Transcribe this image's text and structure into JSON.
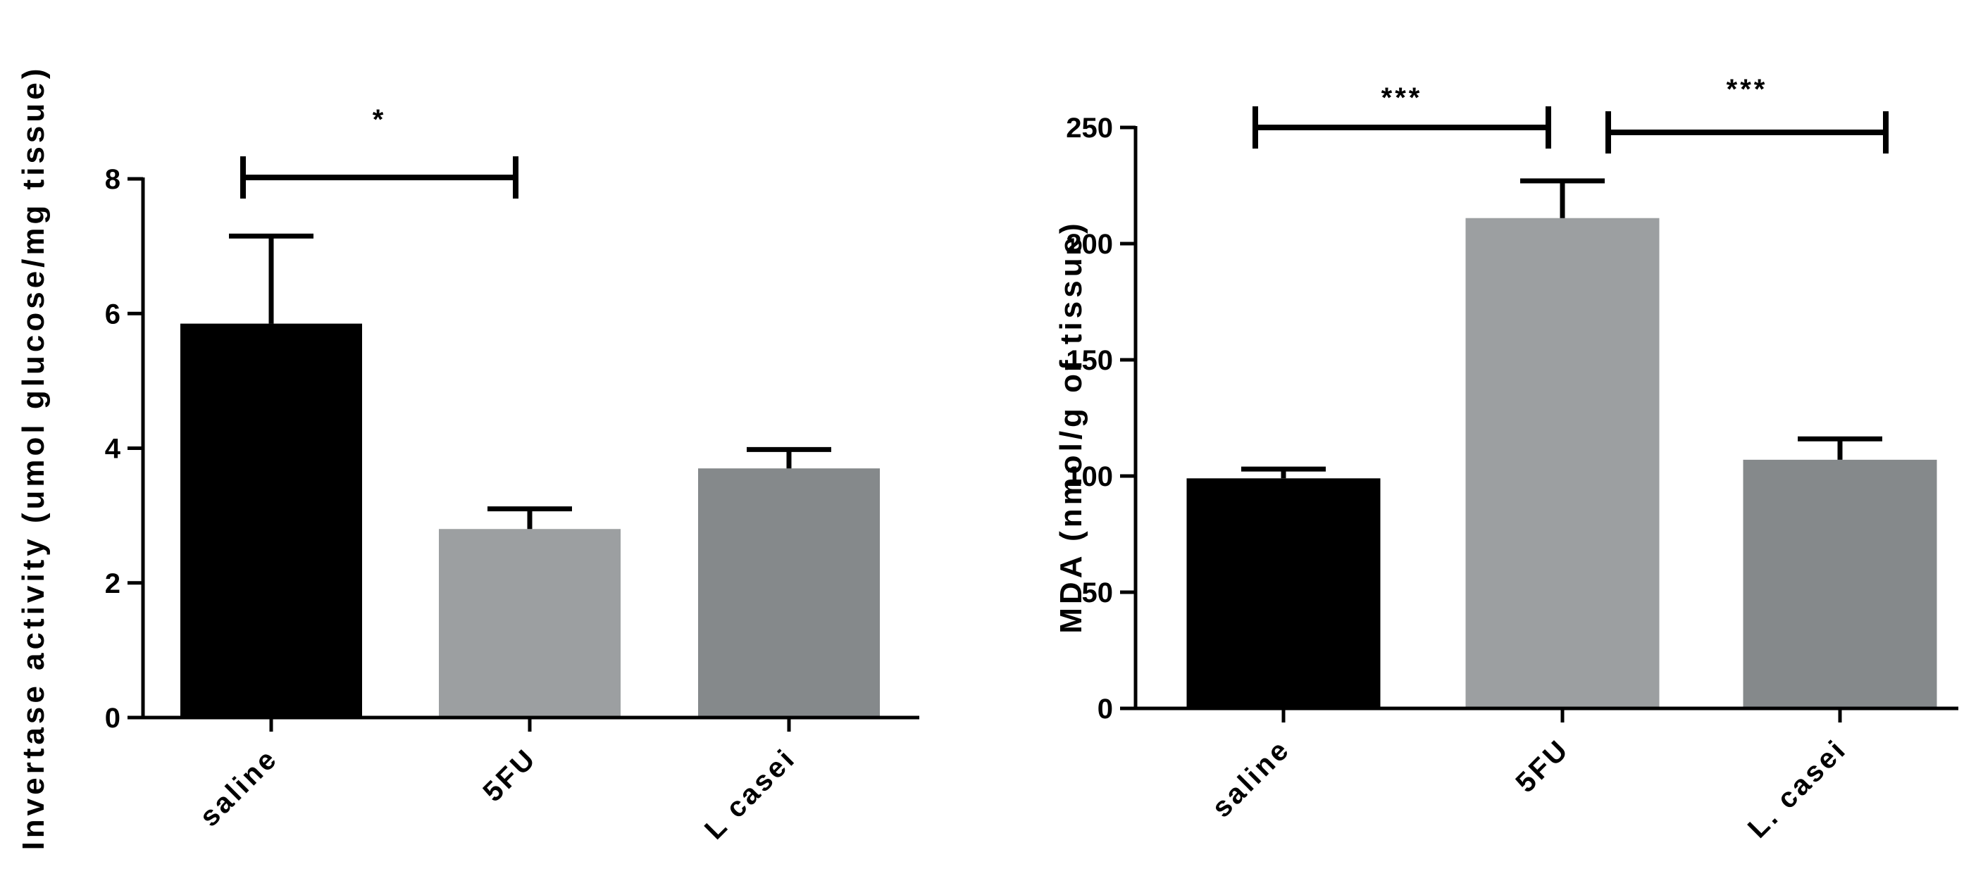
{
  "chart_data": [
    {
      "type": "bar",
      "title": "",
      "xlabel": "",
      "ylabel": "Invertase activity (umol glucose/mg tissue)",
      "ylim": [
        0,
        8
      ],
      "yticks": [
        "0",
        "2",
        "4",
        "6",
        "8"
      ],
      "categories": [
        "saline",
        "5FU",
        "L casei"
      ],
      "values": [
        5.85,
        2.8,
        3.7
      ],
      "errors": [
        1.3,
        0.3,
        0.28
      ],
      "colors": [
        "#000000",
        "#9c9fa1",
        "#85898b"
      ],
      "grid": false,
      "significance": [
        {
          "from": 0,
          "to": 1,
          "label": "*"
        }
      ]
    },
    {
      "type": "bar",
      "title": "",
      "xlabel": "",
      "ylabel": "MDA (nmol/g of tissue)",
      "ylim": [
        0,
        250
      ],
      "yticks": [
        "0",
        "50",
        "100",
        "150",
        "200",
        "250"
      ],
      "categories": [
        "saline",
        "5FU",
        "L. casei"
      ],
      "values": [
        99,
        211,
        107
      ],
      "errors": [
        4,
        16,
        9
      ],
      "colors": [
        "#000000",
        "#9c9fa1",
        "#85898b"
      ],
      "grid": false,
      "significance": [
        {
          "from": 0,
          "to": 1,
          "label": "***"
        },
        {
          "from": 1,
          "to": 2,
          "label": "***"
        }
      ]
    }
  ]
}
